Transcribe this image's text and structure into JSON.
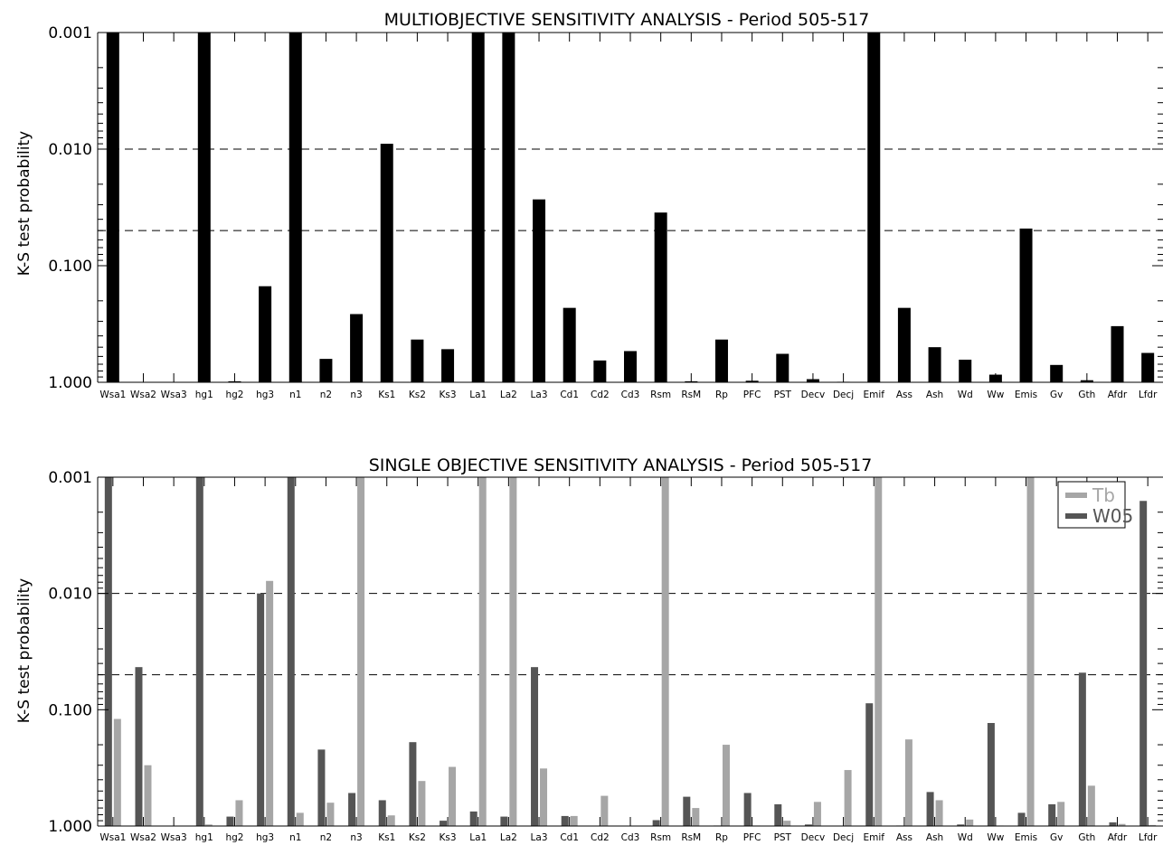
{
  "chart_data": [
    {
      "type": "bar",
      "title": "MULTIOBJECTIVE SENSITIVITY ANALYSIS - Period 505-517",
      "ylabel": "K-S test probability",
      "xlabel": "",
      "yscale": "log",
      "ylim": [
        1.0,
        0.001
      ],
      "y_axis_inverted": true,
      "yticks": [
        "0.001",
        "0.010",
        "0.100",
        "1.000"
      ],
      "yticks_values": [
        0.001,
        0.01,
        0.1,
        1.0
      ],
      "reference_lines": [
        0.01,
        0.05
      ],
      "grid": false,
      "categories": [
        "Wsa1",
        "Wsa2",
        "Wsa3",
        "hg1",
        "hg2",
        "hg3",
        "n1",
        "n2",
        "n3",
        "Ks1",
        "Ks2",
        "Ks3",
        "La1",
        "La2",
        "La3",
        "Cd1",
        "Cd2",
        "Cd3",
        "Rsm",
        "RsM",
        "Rp",
        "PFC",
        "PST",
        "Decv",
        "Decj",
        "Emif",
        "Ass",
        "Ash",
        "Wd",
        "Ww",
        "Emis",
        "Gv",
        "Gth",
        "Afdr",
        "Lfdr"
      ],
      "series": [
        {
          "color": "#000000",
          "values": [
            0.001,
            null,
            null,
            0.001,
            0.98,
            0.15,
            0.001,
            0.63,
            0.26,
            0.009,
            0.43,
            0.52,
            0.001,
            0.001,
            0.027,
            0.23,
            0.65,
            0.54,
            0.035,
            0.98,
            0.43,
            0.97,
            0.57,
            0.94,
            0.99,
            0.001,
            0.23,
            0.5,
            0.64,
            0.86,
            0.048,
            0.71,
            0.96,
            0.33,
            0.56
          ]
        }
      ]
    },
    {
      "type": "bar",
      "title": "SINGLE OBJECTIVE SENSITIVITY ANALYSIS - Period 505-517",
      "ylabel": "K-S test probability",
      "xlabel": "",
      "yscale": "log",
      "ylim": [
        1.0,
        0.001
      ],
      "y_axis_inverted": true,
      "yticks": [
        "0.001",
        "0.010",
        "0.100",
        "1.000"
      ],
      "yticks_values": [
        0.001,
        0.01,
        0.1,
        1.0
      ],
      "reference_lines": [
        0.01,
        0.05
      ],
      "grid": false,
      "legend_position": "top-right",
      "categories": [
        "Wsa1",
        "Wsa2",
        "Wsa3",
        "hg1",
        "hg2",
        "hg3",
        "n1",
        "n2",
        "n3",
        "Ks1",
        "Ks2",
        "Ks3",
        "La1",
        "La2",
        "La3",
        "Cd1",
        "Cd2",
        "Cd3",
        "Rsm",
        "RsM",
        "Rp",
        "PFC",
        "PST",
        "Decv",
        "Decj",
        "Emif",
        "Ass",
        "Ash",
        "Wd",
        "Ww",
        "Emis",
        "Gv",
        "Gth",
        "Afdr",
        "Lfdr"
      ],
      "series": [
        {
          "name": "Tb",
          "color": "#a6a6a6",
          "values": [
            0.12,
            0.3,
            null,
            0.97,
            0.6,
            0.0078,
            0.77,
            0.63,
            0.001,
            0.81,
            0.41,
            0.31,
            0.001,
            0.001,
            0.32,
            0.82,
            0.55,
            null,
            0.001,
            0.7,
            0.2,
            0.99,
            0.9,
            0.62,
            0.33,
            0.001,
            0.18,
            0.6,
            0.88,
            0.99,
            0.001,
            0.62,
            0.45,
            0.96,
            0.98
          ]
        },
        {
          "name": "W05",
          "color": "#555555",
          "values": [
            0.001,
            0.043,
            null,
            0.001,
            0.83,
            0.01,
            0.001,
            0.22,
            0.52,
            0.6,
            0.19,
            0.9,
            0.75,
            0.83,
            0.043,
            0.82,
            null,
            null,
            0.89,
            0.56,
            0.99,
            0.52,
            0.65,
            0.97,
            null,
            0.088,
            0.99,
            0.51,
            0.97,
            0.13,
            0.77,
            0.65,
            0.048,
            0.93,
            0.0016
          ]
        }
      ]
    }
  ]
}
